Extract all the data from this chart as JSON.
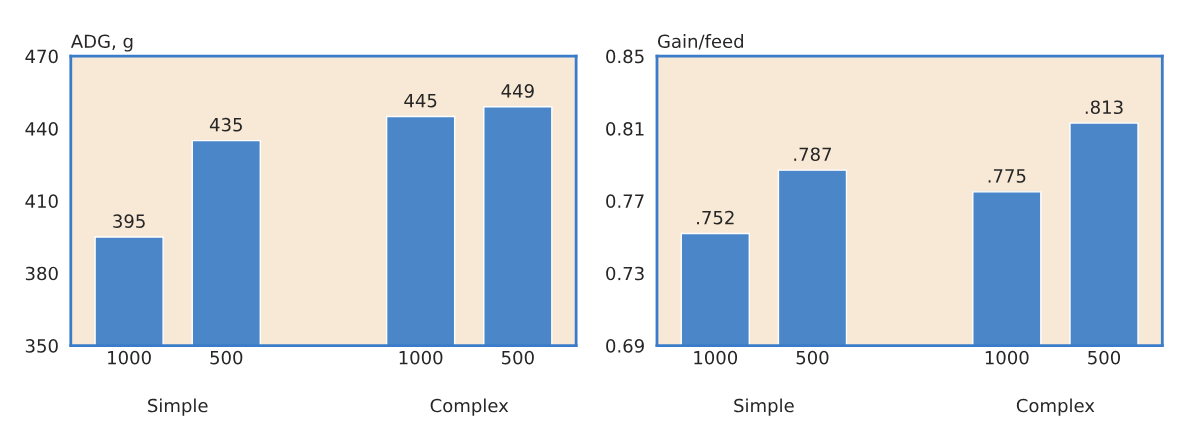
{
  "chart_data": [
    {
      "type": "bar",
      "title": "ADG, g",
      "categories": [
        "1000",
        "500",
        null,
        "1000",
        "500"
      ],
      "values": [
        395,
        435,
        null,
        445,
        449
      ],
      "color": "#4a86c8",
      "ylim": [
        350,
        470
      ],
      "yticks": [
        350,
        380,
        410,
        440,
        470
      ],
      "data_labels": true,
      "grid": false,
      "legend": false,
      "annotations": [
        "Simple",
        "Complex"
      ]
    },
    {
      "type": "bar",
      "title": "Gain/feed",
      "categories": [
        "1000",
        "500",
        null,
        "1000",
        "500"
      ],
      "values": [
        0.752,
        0.787,
        null,
        0.775,
        0.813
      ],
      "value_labels": [
        ".752",
        ".787",
        null,
        ".775",
        ".813"
      ],
      "color": "#4a86c8",
      "ylim": [
        0.69,
        0.85
      ],
      "yticks": [
        0.69,
        0.73,
        0.77,
        0.81,
        0.85
      ],
      "grid": false,
      "legend": false,
      "annotations": [
        "Simple",
        "Complex"
      ]
    }
  ]
}
